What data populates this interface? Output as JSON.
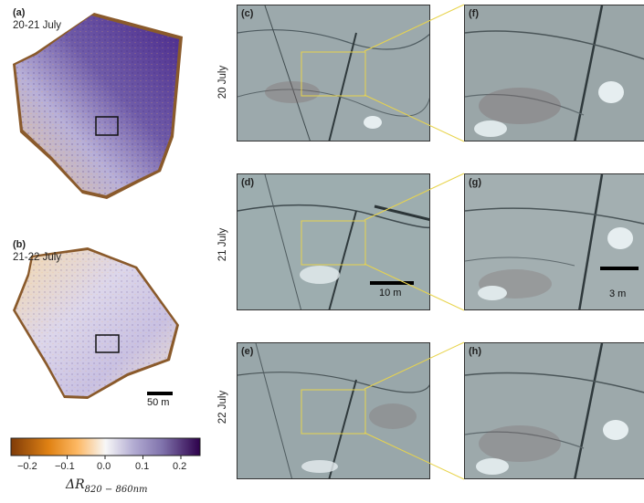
{
  "left_panels": {
    "a": {
      "tag": "(a)",
      "dates": "20-21 July"
    },
    "b": {
      "tag": "(b)",
      "dates": "21-22 July"
    },
    "scalebar": "50 m"
  },
  "colorbar": {
    "ticks": [
      "−0.2",
      "−0.1",
      "0.0",
      "0.1",
      "0.2"
    ],
    "label_main": "ΔR",
    "label_sub": "820 − 860nm",
    "colors": [
      "#7f3b08",
      "#f1a340",
      "#fee0b6",
      "#f7f7f7",
      "#d8daeb",
      "#998ec3",
      "#2d004b"
    ]
  },
  "rows": [
    {
      "date": "20 July",
      "wide": "(c)",
      "zoom": "(f)"
    },
    {
      "date": "21 July",
      "wide": "(d)",
      "zoom": "(g)"
    },
    {
      "date": "22 July",
      "wide": "(e)",
      "zoom": "(h)"
    }
  ],
  "scalebars": {
    "wide": "10 m",
    "zoom": "3 m"
  },
  "colors": {
    "box": "#e8d44d",
    "frame": "#333333"
  }
}
